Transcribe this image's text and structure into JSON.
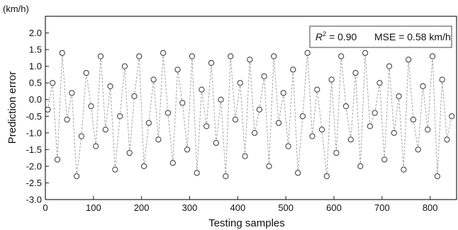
{
  "chart_data": {
    "type": "scatter",
    "style": "circles connected by dashed vertical lines",
    "xlabel": "Testing samples",
    "ylabel": "Prediction error",
    "yunit": "(km/h)",
    "xlim": [
      0,
      855
    ],
    "ylim": [
      -3.0,
      2.5
    ],
    "xticks": [
      0,
      100,
      200,
      300,
      400,
      500,
      600,
      700,
      800
    ],
    "yticks": [
      2.0,
      1.5,
      1.0,
      0.5,
      0.0,
      -0.5,
      -1.0,
      -1.5,
      -2.0,
      -2.5,
      -3.0
    ],
    "ytick_labels": [
      "2.0",
      "1.5",
      "1.0",
      "0.5",
      "0.0",
      "-0.5",
      "-1.0",
      "-1.5",
      "-2.0",
      "-2.5",
      "-3.0"
    ],
    "grid": false,
    "annotation": {
      "r2_label": "R",
      "r2_sup": "2",
      "r2_value": " = 0.90",
      "mse_text": "MSE = 0.58 km/h"
    },
    "colors": {
      "marker": "#333333",
      "line": "#9a9a9a"
    },
    "series": [
      {
        "x": [
          5,
          15,
          25,
          35,
          45,
          55,
          65,
          75,
          85,
          95,
          105,
          115,
          125,
          135,
          145,
          155,
          165,
          175,
          185,
          195,
          205,
          215,
          225,
          235,
          245,
          255,
          265,
          275,
          285,
          295,
          305,
          315,
          325,
          335,
          345,
          355,
          365,
          375,
          385,
          395,
          405,
          415,
          425,
          435,
          445,
          455,
          465,
          475,
          485,
          495,
          505,
          515,
          525,
          535,
          545,
          555,
          565,
          575,
          585,
          595,
          605,
          615,
          625,
          635,
          645,
          655,
          665,
          675,
          685,
          695,
          705,
          715,
          725,
          735,
          745,
          755,
          765,
          775,
          785,
          795,
          805,
          815,
          825,
          835,
          845
        ],
        "y": [
          -0.3,
          0.5,
          -1.8,
          1.4,
          -0.6,
          0.2,
          -2.3,
          -1.1,
          0.8,
          -0.2,
          -1.4,
          1.3,
          -0.9,
          0.4,
          -2.1,
          -0.5,
          1.0,
          -1.6,
          0.1,
          1.3,
          -2.0,
          -0.7,
          0.6,
          -1.2,
          1.4,
          -0.4,
          -1.9,
          0.9,
          -0.1,
          -1.5,
          1.3,
          -2.2,
          0.3,
          -0.8,
          1.1,
          -1.3,
          0.0,
          -2.3,
          1.3,
          -0.6,
          0.5,
          -1.7,
          1.2,
          -1.0,
          -0.3,
          0.7,
          -2.0,
          1.3,
          -0.7,
          0.2,
          -1.4,
          0.9,
          -2.2,
          -0.5,
          1.4,
          -1.1,
          0.3,
          -0.9,
          -2.3,
          0.6,
          -1.6,
          1.3,
          -0.2,
          -1.2,
          0.8,
          -2.0,
          1.4,
          -0.8,
          -0.4,
          0.5,
          -1.8,
          1.0,
          -1.0,
          0.1,
          -2.1,
          1.2,
          -0.6,
          -1.5,
          0.4,
          -0.9,
          1.3,
          -2.3,
          0.6,
          -1.2,
          -0.5
        ]
      }
    ]
  }
}
